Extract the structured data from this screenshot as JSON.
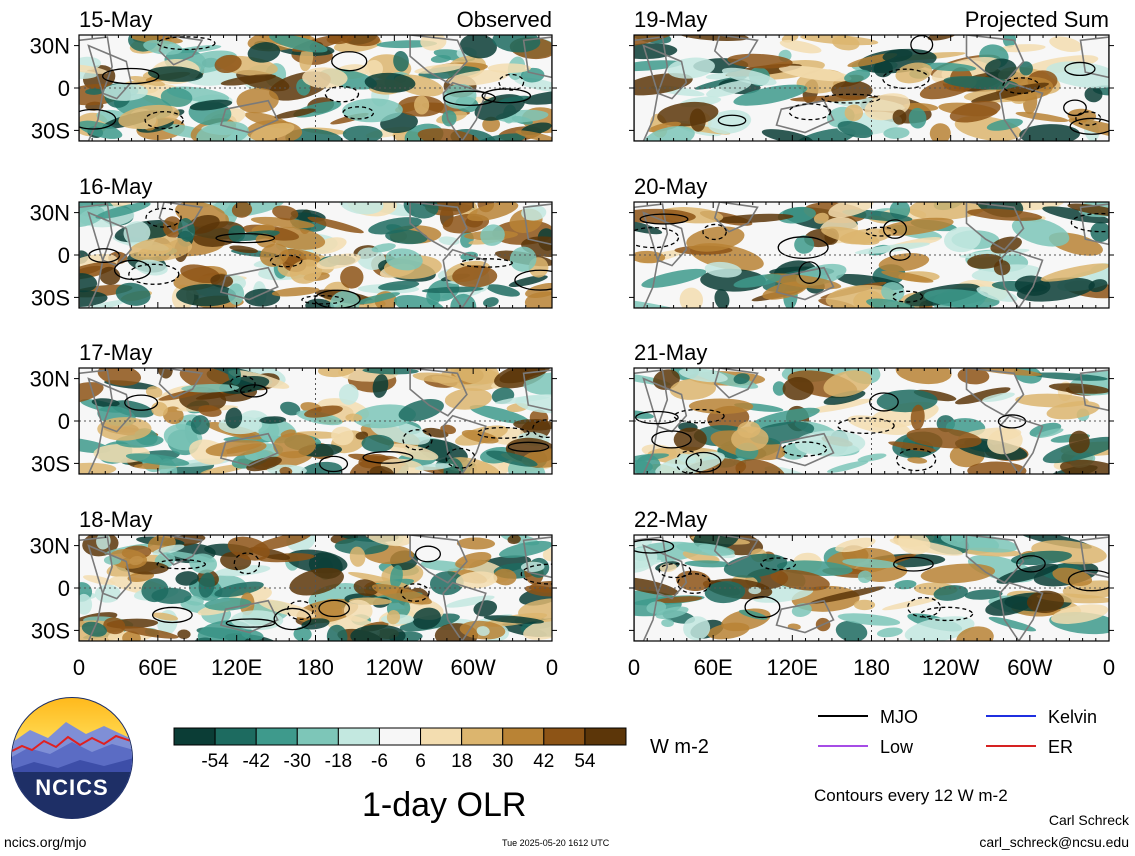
{
  "chart_data": {
    "type": "heatmap",
    "title": "1-day OLR",
    "units": "W m-2",
    "column_titles": [
      "Observed",
      "Projected Sum"
    ],
    "panels": [
      {
        "date": "15-May",
        "column": "Observed"
      },
      {
        "date": "16-May",
        "column": "Observed"
      },
      {
        "date": "17-May",
        "column": "Observed"
      },
      {
        "date": "18-May",
        "column": "Observed"
      },
      {
        "date": "19-May",
        "column": "Projected Sum"
      },
      {
        "date": "20-May",
        "column": "Projected Sum"
      },
      {
        "date": "21-May",
        "column": "Projected Sum"
      },
      {
        "date": "22-May",
        "column": "Projected Sum"
      }
    ],
    "x_tick_labels": [
      "0",
      "60E",
      "120E",
      "180",
      "120W",
      "60W",
      "0"
    ],
    "y_tick_labels": [
      "30N",
      "0",
      "30S"
    ],
    "colorbar": {
      "ticks": [
        "-54",
        "-42",
        "-30",
        "-18",
        "-6",
        "6",
        "18",
        "30",
        "42",
        "54"
      ],
      "colors": [
        "#0b3d36",
        "#1d6b60",
        "#3e9a8c",
        "#7dc6b8",
        "#c3e8e0",
        "#f7f7f7",
        "#f3ddb0",
        "#dcb56e",
        "#b98335",
        "#8d5416",
        "#5c3609"
      ]
    },
    "legend": [
      {
        "label": "MJO",
        "color": "#000000"
      },
      {
        "label": "Kelvin",
        "color": "#1f2fe0"
      },
      {
        "label": "Low",
        "color": "#a64ce6"
      },
      {
        "label": "ER",
        "color": "#d62222"
      }
    ],
    "contour_note": "Contours every 12 W m-2"
  },
  "logo": {
    "text": "NCICS"
  },
  "footer": {
    "url": "ncics.org/mjo",
    "timestamp": "Tue 2025-05-20 1612 UTC",
    "author": "Carl Schreck",
    "email": "carl_schreck@ncsu.edu"
  }
}
